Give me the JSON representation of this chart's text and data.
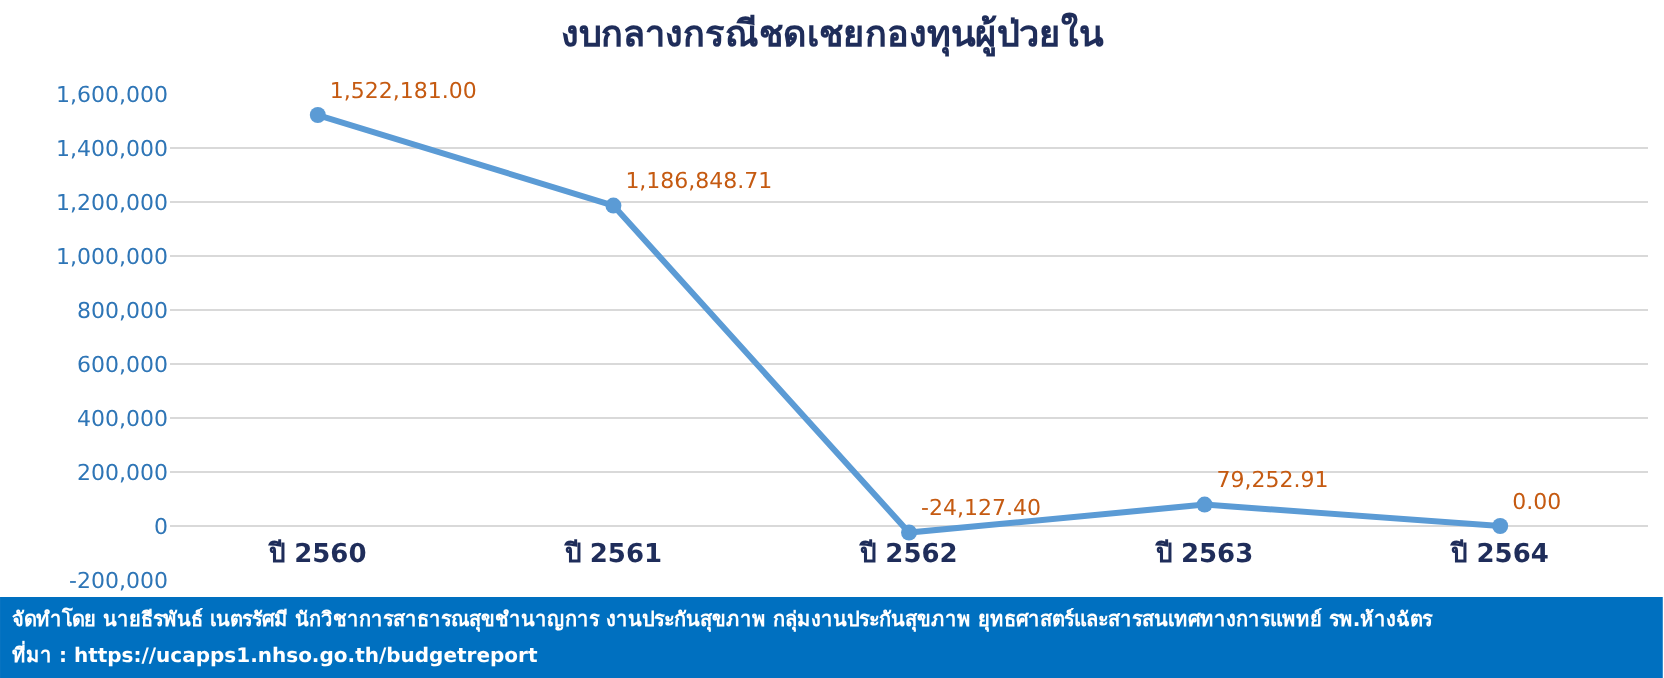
{
  "chart_data": {
    "type": "line",
    "title": "งบกลางกรณีชดเชยกองทุนผู้ป่วยใน",
    "categories": [
      "ปี 2560",
      "ปี 2561",
      "ปี 2562",
      "ปี 2563",
      "ปี 2564"
    ],
    "series": [
      {
        "color": "#5b9bd5",
        "values": [
          1522181.0,
          1186848.71,
          -24127.4,
          79252.91,
          0.0
        ],
        "value_labels": [
          "1,522,181.00",
          "1,186,848.71",
          "-24,127.40",
          "79,252.91",
          "0.00"
        ]
      }
    ],
    "ylim": [
      -200000,
      1600000
    ],
    "yticks": [
      {
        "value": -200000,
        "label": "-200,000"
      },
      {
        "value": 0,
        "label": "0"
      },
      {
        "value": 200000,
        "label": "200,000"
      },
      {
        "value": 400000,
        "label": "400,000"
      },
      {
        "value": 600000,
        "label": "600,000"
      },
      {
        "value": 800000,
        "label": "800,000"
      },
      {
        "value": 1000000,
        "label": "1,000,000"
      },
      {
        "value": 1200000,
        "label": "1,200,000"
      },
      {
        "value": 1400000,
        "label": "1,400,000"
      },
      {
        "value": 1600000,
        "label": "1,600,000"
      }
    ],
    "grid": "y",
    "legend": false,
    "marker": "circle",
    "line_style": "solid",
    "annotations": [
      "จัดทำโดย นายธีรพันธ์ เนตรรัศมี นักวิชาการสาธารณสุขชำนาญการ งานประกันสุขภาพ กลุ่มงานประกันสุขภาพ ยุทธศาสตร์และสารสนเทศทางการแพทย์ รพ.ห้างฉัตร",
      "ที่มา : https://ucapps1.nhso.go.th/budgetreport"
    ]
  }
}
